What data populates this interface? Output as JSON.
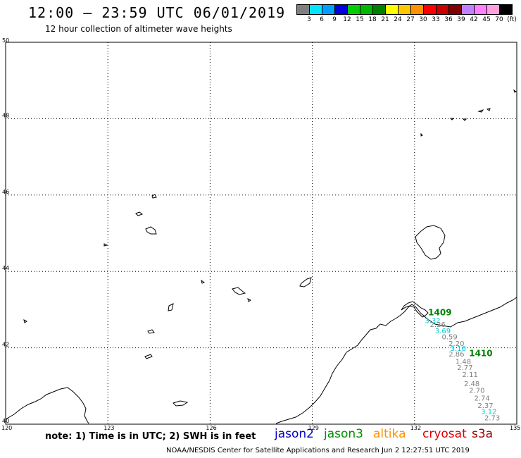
{
  "header": {
    "title": "12:00 – 23:59 UTC 06/01/2019",
    "subtitle": "12 hour collection of altimeter wave heights"
  },
  "legend": {
    "colors": [
      "#7f7f7f",
      "#00e5ff",
      "#00a0ff",
      "#0000e0",
      "#00d000",
      "#00b800",
      "#008000",
      "#ffff00",
      "#ffc800",
      "#ff9000",
      "#ff0000",
      "#c80000",
      "#800000",
      "#c080ff",
      "#ff80ff",
      "#ff9fdf",
      "#000000"
    ],
    "tick_labels": [
      "3",
      "6",
      "9",
      "12",
      "15",
      "18",
      "21",
      "24",
      "27",
      "30",
      "33",
      "36",
      "39",
      "42",
      "45",
      "70",
      "(ft)"
    ]
  },
  "map": {
    "y_labels": [
      "50",
      "48",
      "46",
      "44",
      "42",
      "40"
    ],
    "x_labels": [
      "120",
      "123",
      "126",
      "129",
      "132",
      "135"
    ],
    "track_labels": {
      "pass_1409": "1409",
      "pass_1410": "1410"
    },
    "swh_values": [
      {
        "v": "3.32",
        "color": "#00c8d0",
        "lon": 132.3,
        "lat": 42.65
      },
      {
        "v": "2.26",
        "color": "#7f7f7f",
        "lon": 132.45,
        "lat": 42.55
      },
      {
        "v": "3.69",
        "color": "#00c8d0",
        "lon": 132.6,
        "lat": 42.38
      },
      {
        "v": "0.59",
        "color": "#7f7f7f",
        "lon": 132.8,
        "lat": 42.22
      },
      {
        "v": "2.20",
        "color": "#7f7f7f",
        "lon": 133.0,
        "lat": 42.05
      },
      {
        "v": "3.16",
        "color": "#00c8d0",
        "lon": 133.05,
        "lat": 41.92
      },
      {
        "v": "2.86",
        "color": "#7f7f7f",
        "lon": 133.0,
        "lat": 41.77
      },
      {
        "v": "1.48",
        "color": "#7f7f7f",
        "lon": 133.2,
        "lat": 41.58
      },
      {
        "v": "2.77",
        "color": "#7f7f7f",
        "lon": 133.25,
        "lat": 41.42
      },
      {
        "v": "2.11",
        "color": "#7f7f7f",
        "lon": 133.4,
        "lat": 41.24
      },
      {
        "v": "2.48",
        "color": "#7f7f7f",
        "lon": 133.45,
        "lat": 41.0
      },
      {
        "v": "2.70",
        "color": "#7f7f7f",
        "lon": 133.6,
        "lat": 40.82
      },
      {
        "v": "2.74",
        "color": "#7f7f7f",
        "lon": 133.75,
        "lat": 40.62
      },
      {
        "v": "2.37",
        "color": "#7f7f7f",
        "lon": 133.85,
        "lat": 40.42
      },
      {
        "v": "3.12",
        "color": "#00c8d0",
        "lon": 133.95,
        "lat": 40.27
      },
      {
        "v": "2.73",
        "color": "#7f7f7f",
        "lon": 134.05,
        "lat": 40.1
      }
    ]
  },
  "footer": {
    "note": "note: 1) Time is in UTC; 2) SWH is in feet",
    "satellites": [
      {
        "name": "jason2",
        "color": "#0000c8"
      },
      {
        "name": "jason3",
        "color": "#009000"
      },
      {
        "name": "altika",
        "color": "#ff9000"
      },
      {
        "name": "cryosat",
        "color": "#e00000"
      },
      {
        "name": "s3a",
        "color": "#a00000"
      }
    ],
    "credit": "NOAA/NESDIS Center for Satellite Applications and Research    Jun  2 12:27:51 UTC 2019"
  }
}
